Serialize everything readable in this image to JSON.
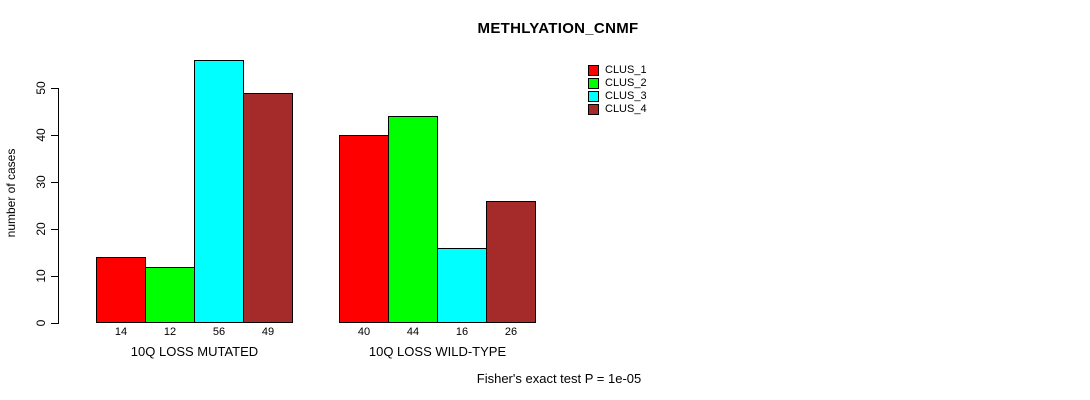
{
  "title": "METHLYATION_CNMF",
  "y_axis": {
    "label": "number of cases",
    "ticks": [
      "0",
      "10",
      "20",
      "30",
      "40",
      "50"
    ]
  },
  "footer": "Fisher's exact test P = 1e-05",
  "legend": {
    "entries": [
      {
        "label": "CLUS_1",
        "color": "#FF0000"
      },
      {
        "label": "CLUS_2",
        "color": "#00FF00"
      },
      {
        "label": "CLUS_3",
        "color": "#00FFFF"
      },
      {
        "label": "CLUS_4",
        "color": "#A52A2A"
      }
    ]
  },
  "chart_data": {
    "type": "bar",
    "title": "METHLYATION_CNMF",
    "xlabel": "",
    "ylabel": "number of cases",
    "ylim": [
      0,
      56
    ],
    "yticks": [
      0,
      10,
      20,
      30,
      40,
      50
    ],
    "grid": false,
    "legend_position": "top-right",
    "categories": [
      "10Q LOSS MUTATED",
      "10Q LOSS WILD-TYPE"
    ],
    "series": [
      {
        "name": "CLUS_1",
        "color": "#FF0000",
        "values": [
          14,
          40
        ]
      },
      {
        "name": "CLUS_2",
        "color": "#00FF00",
        "values": [
          12,
          44
        ]
      },
      {
        "name": "CLUS_3",
        "color": "#00FFFF",
        "values": [
          56,
          16
        ]
      },
      {
        "name": "CLUS_4",
        "color": "#A52A2A",
        "values": [
          49,
          26
        ]
      }
    ],
    "bar_value_labels": [
      [
        14,
        12,
        56,
        49
      ],
      [
        40,
        44,
        16,
        26
      ]
    ],
    "annotation": "Fisher's exact test P = 1e-05"
  }
}
